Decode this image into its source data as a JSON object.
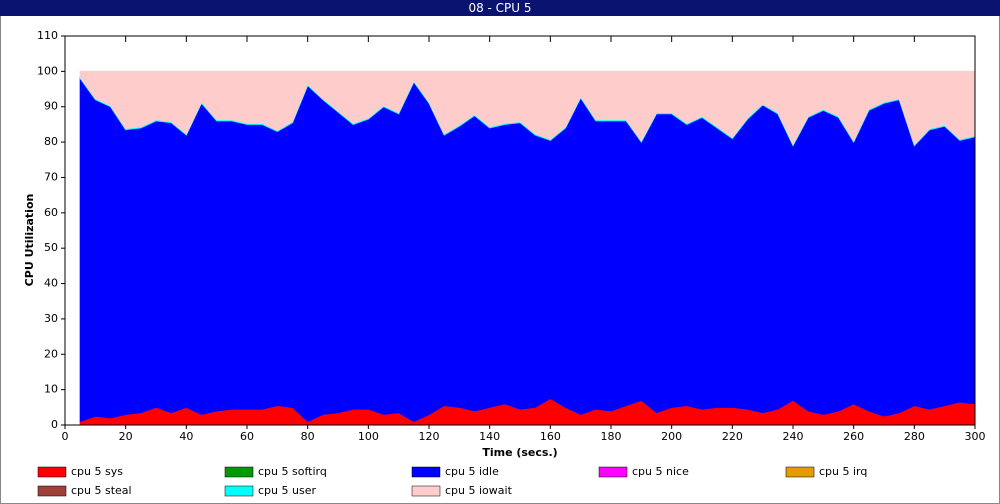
{
  "chart_data": {
    "type": "stacked_area",
    "title": "08 - CPU 5",
    "xlabel": "Time (secs.)",
    "ylabel": "CPU Utilization",
    "x": [
      5,
      10,
      15,
      20,
      25,
      30,
      35,
      40,
      45,
      50,
      55,
      60,
      65,
      70,
      75,
      80,
      85,
      90,
      95,
      100,
      105,
      110,
      115,
      120,
      125,
      130,
      135,
      140,
      145,
      150,
      155,
      160,
      165,
      170,
      175,
      180,
      185,
      190,
      195,
      200,
      205,
      210,
      215,
      220,
      225,
      230,
      235,
      240,
      245,
      250,
      255,
      260,
      265,
      270,
      275,
      280,
      285,
      290,
      295,
      300
    ],
    "xlim": [
      0,
      300
    ],
    "xticks": [
      0,
      20,
      40,
      60,
      80,
      100,
      120,
      140,
      160,
      180,
      200,
      220,
      240,
      260,
      280,
      300
    ],
    "ylim": [
      0,
      110
    ],
    "yticks": [
      0,
      10,
      20,
      30,
      40,
      50,
      60,
      70,
      80,
      90,
      100,
      110
    ],
    "series": [
      {
        "name": "cpu 5 sys",
        "color": "#ff0000",
        "values": [
          1,
          2.5,
          2,
          3,
          3.5,
          5,
          3.5,
          5,
          3,
          4,
          4.5,
          4.5,
          4.5,
          5.5,
          5,
          1,
          3,
          3.5,
          4.5,
          4.5,
          3,
          3.5,
          1,
          3,
          5.5,
          5,
          4,
          5,
          6,
          4.5,
          5,
          7.5,
          5,
          3,
          4.5,
          4,
          5.5,
          7,
          3.5,
          5,
          5.5,
          4.5,
          5,
          5,
          4.5,
          3.5,
          4.5,
          7,
          4,
          3,
          4,
          6,
          4,
          2.5,
          3.5,
          5.5,
          4.5,
          5.5,
          6.5,
          6
        ]
      },
      {
        "name": "cpu 5 softirq",
        "color": "#009900",
        "values": [
          0,
          0,
          0,
          0,
          0,
          0,
          0,
          0,
          0,
          0,
          0,
          0,
          0,
          0,
          0,
          0,
          0,
          0,
          0,
          0,
          0,
          0,
          0,
          0,
          0,
          0,
          0,
          0,
          0,
          0,
          0,
          0,
          0,
          0,
          0,
          0,
          0,
          0,
          0,
          0,
          0,
          0,
          0,
          0,
          0,
          0,
          0,
          0,
          0,
          0,
          0,
          0,
          0,
          0,
          0,
          0,
          0,
          0,
          0,
          0
        ]
      },
      {
        "name": "cpu 5 idle",
        "color": "#0000ff",
        "values": [
          97,
          89.5,
          88,
          80.5,
          80.5,
          81,
          82,
          77,
          88,
          82,
          81.5,
          80.5,
          80.5,
          77.5,
          80.5,
          95,
          89,
          85,
          80.5,
          82,
          87,
          84.5,
          96,
          88,
          76.5,
          79.5,
          83.5,
          79,
          79,
          81,
          77,
          73,
          79,
          89.5,
          81.5,
          82,
          80.5,
          73,
          84.5,
          83,
          79.5,
          82.5,
          79,
          76,
          82,
          87,
          83.5,
          72,
          83,
          86,
          83,
          74,
          85,
          88.5,
          88.5,
          73.5,
          79,
          79,
          74,
          75.5
        ]
      },
      {
        "name": "cpu 5 nice",
        "color": "#ff00ff",
        "values": [
          0,
          0,
          0,
          0,
          0,
          0,
          0,
          0,
          0,
          0,
          0,
          0,
          0,
          0,
          0,
          0,
          0,
          0,
          0,
          0,
          0,
          0,
          0,
          0,
          0,
          0,
          0,
          0,
          0,
          0,
          0,
          0,
          0,
          0,
          0,
          0,
          0,
          0,
          0,
          0,
          0,
          0,
          0,
          0,
          0,
          0,
          0,
          0,
          0,
          0,
          0,
          0,
          0,
          0,
          0,
          0,
          0,
          0,
          0,
          0
        ]
      },
      {
        "name": "cpu 5 irq",
        "color": "#e59c00",
        "values": [
          0,
          0,
          0,
          0,
          0,
          0,
          0,
          0,
          0,
          0,
          0,
          0,
          0,
          0,
          0,
          0,
          0,
          0,
          0,
          0,
          0,
          0,
          0,
          0,
          0,
          0,
          0,
          0,
          0,
          0,
          0,
          0,
          0,
          0,
          0,
          0,
          0,
          0,
          0,
          0,
          0,
          0,
          0,
          0,
          0,
          0,
          0,
          0,
          0,
          0,
          0,
          0,
          0,
          0,
          0,
          0,
          0,
          0,
          0,
          0
        ]
      },
      {
        "name": "cpu 5 steal",
        "color": "#a0403a",
        "values": [
          0,
          0,
          0,
          0,
          0,
          0,
          0,
          0,
          0,
          0,
          0,
          0,
          0,
          0,
          0,
          0,
          0,
          0,
          0,
          0,
          0,
          0,
          0,
          0,
          0,
          0,
          0,
          0,
          0,
          0,
          0,
          0,
          0,
          0,
          0,
          0,
          0,
          0,
          0,
          0,
          0,
          0,
          0,
          0,
          0,
          0,
          0,
          0,
          0,
          0,
          0,
          0,
          0,
          0,
          0,
          0,
          0,
          0,
          0,
          0
        ]
      },
      {
        "name": "cpu 5 user",
        "color": "#00ffff",
        "values": [
          0.3,
          0.3,
          0.3,
          0.3,
          0.3,
          0.3,
          0.3,
          0.3,
          0.3,
          0.3,
          0.3,
          0.3,
          0.3,
          0.3,
          0.3,
          0.3,
          0.3,
          0.3,
          0.3,
          0.3,
          0.3,
          0.3,
          0.3,
          0.3,
          0.3,
          0.3,
          0.3,
          0.3,
          0.3,
          0.3,
          0.3,
          0.3,
          0.3,
          0.3,
          0.3,
          0.3,
          0.3,
          0.3,
          0.3,
          0.3,
          0.3,
          0.3,
          0.3,
          0.3,
          0.3,
          0.3,
          0.3,
          0.3,
          0.3,
          0.3,
          0.3,
          0.3,
          0.3,
          0.3,
          0.3,
          0.3,
          0.3,
          0.3,
          0.3,
          0.3
        ]
      },
      {
        "name": "cpu 5 iowait",
        "color": "#ffcccc",
        "values": [
          1.7,
          7.7,
          9.7,
          16.2,
          15.7,
          13.7,
          14.2,
          17.7,
          8.7,
          13.7,
          13.7,
          14.7,
          14.7,
          16.7,
          14.2,
          3.7,
          7.7,
          11.2,
          14.7,
          13.2,
          9.7,
          11.7,
          2.7,
          8.7,
          17.7,
          15.2,
          12.2,
          15.7,
          14.7,
          14.2,
          17.7,
          19.2,
          15.7,
          7.2,
          13.7,
          13.7,
          13.7,
          19.7,
          11.7,
          11.7,
          14.7,
          12.7,
          15.7,
          18.7,
          13.2,
          9.2,
          11.7,
          20.7,
          12.7,
          10.7,
          12.7,
          19.7,
          10.7,
          8.7,
          7.7,
          20.7,
          16.2,
          15.2,
          19.2,
          18.2
        ]
      }
    ]
  }
}
